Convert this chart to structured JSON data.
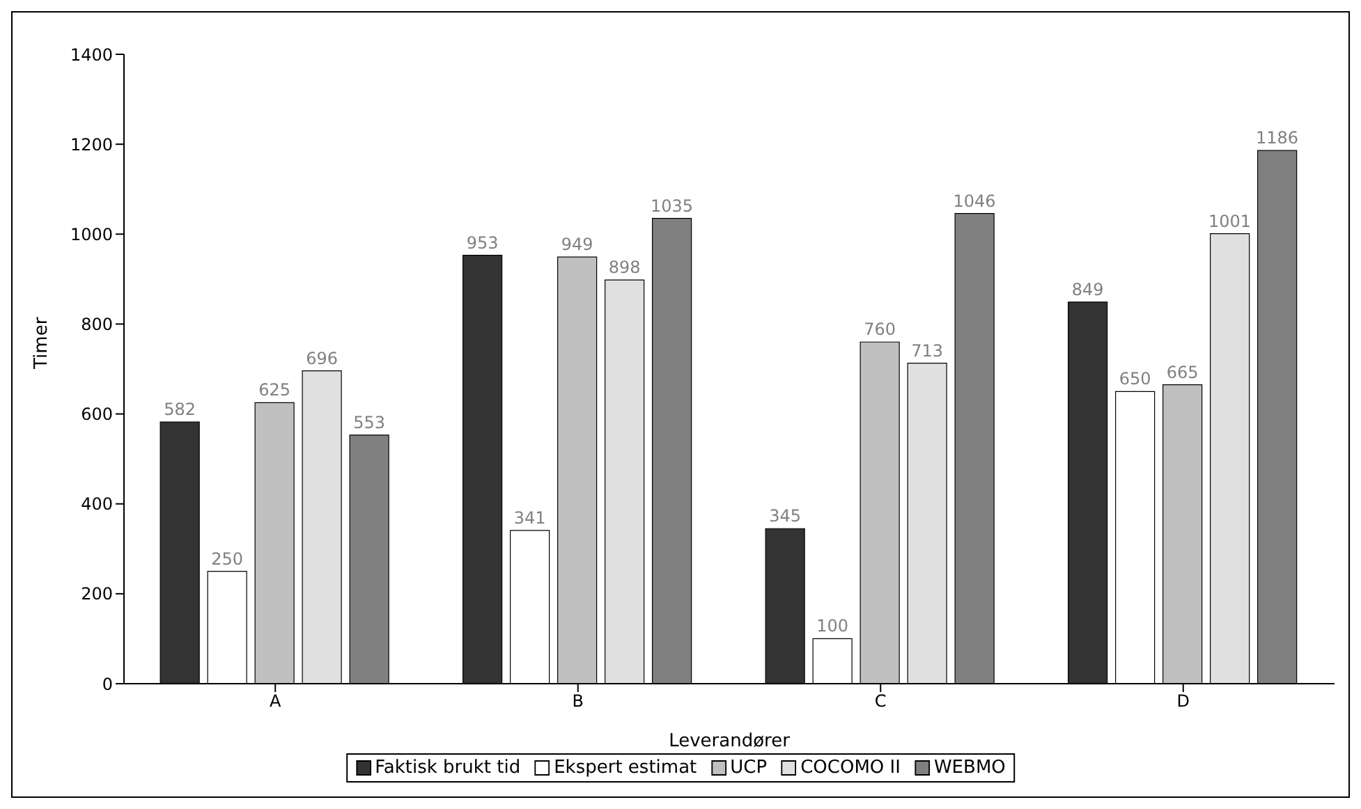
{
  "chart_data": {
    "type": "bar",
    "xlabel": "Leverandører",
    "ylabel": "Timer",
    "categories": [
      "A",
      "B",
      "C",
      "D"
    ],
    "series": [
      {
        "name": "Faktisk brukt tid",
        "color": "#333333",
        "values": [
          582,
          953,
          345,
          849
        ]
      },
      {
        "name": "Ekspert estimat",
        "color": "#ffffff",
        "values": [
          250,
          341,
          100,
          650
        ]
      },
      {
        "name": "UCP",
        "color": "#c0c0c0",
        "values": [
          625,
          949,
          760,
          665
        ]
      },
      {
        "name": "COCOMO II",
        "color": "#e0e0e0",
        "values": [
          696,
          898,
          713,
          1001
        ]
      },
      {
        "name": "WEBMO",
        "color": "#808080",
        "values": [
          553,
          1035,
          1046,
          1186
        ]
      }
    ],
    "ylim": [
      0,
      1400
    ],
    "yticks": [
      0,
      200,
      400,
      600,
      800,
      1000,
      1200,
      1400
    ],
    "grid": false,
    "legend": "bottom",
    "data_labels": true
  }
}
